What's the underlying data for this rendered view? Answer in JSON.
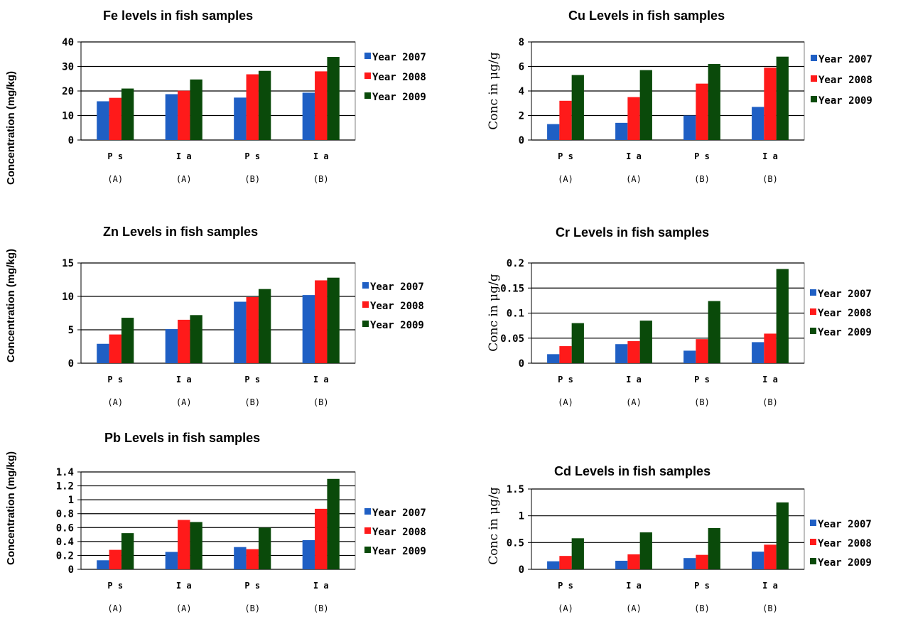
{
  "colors": {
    "y2007": "#1f5fc4",
    "y2008": "#ff1a1a",
    "y2009": "#0a4a0a"
  },
  "chart_data": [
    {
      "id": "fe",
      "type": "bar",
      "title": "Fe levels in fish samples",
      "ylabel": "Concentration  (mg/kg)",
      "categories": [
        [
          "P s",
          "(A)"
        ],
        [
          "I a",
          "(A)"
        ],
        [
          "P s",
          "(B)"
        ],
        [
          "I a",
          "(B)"
        ]
      ],
      "ylim": [
        0,
        40
      ],
      "yticks": [
        "0",
        "10",
        "20",
        "30",
        "40"
      ],
      "series": [
        {
          "name": "Year 2007",
          "values": [
            15.8,
            18.7,
            17.3,
            19.3
          ]
        },
        {
          "name": "Year 2008",
          "values": [
            17.2,
            20.1,
            26.8,
            28.0
          ]
        },
        {
          "name": "Year 2009",
          "values": [
            21.0,
            24.7,
            28.2,
            33.9
          ]
        }
      ]
    },
    {
      "id": "cu",
      "type": "bar",
      "title": "Cu Levels in fish samples",
      "ylabel": "Conc in μg/g",
      "categories": [
        [
          "P s",
          "(A)"
        ],
        [
          "I a",
          "(A)"
        ],
        [
          "P s",
          "(B)"
        ],
        [
          "I a",
          "(B)"
        ]
      ],
      "ylim": [
        0,
        8
      ],
      "yticks": [
        "0",
        "2",
        "4",
        "6",
        "8"
      ],
      "series": [
        {
          "name": "Year 2007",
          "values": [
            1.3,
            1.4,
            2.0,
            2.7
          ]
        },
        {
          "name": "Year 2008",
          "values": [
            3.2,
            3.5,
            4.6,
            5.9
          ]
        },
        {
          "name": "Year 2009",
          "values": [
            5.3,
            5.7,
            6.2,
            6.8
          ]
        }
      ]
    },
    {
      "id": "zn",
      "type": "bar",
      "title": "Zn Levels in fish samples",
      "ylabel": "Concentration  (mg/kg)",
      "categories": [
        [
          "P s",
          "(A)"
        ],
        [
          "I a",
          "(A)"
        ],
        [
          "P s",
          "(B)"
        ],
        [
          "I a",
          "(B)"
        ]
      ],
      "ylim": [
        0,
        15
      ],
      "yticks": [
        "0",
        "5",
        "10",
        "15"
      ],
      "series": [
        {
          "name": "Year 2007",
          "values": [
            2.9,
            5.1,
            9.2,
            10.2
          ]
        },
        {
          "name": "Year 2008",
          "values": [
            4.3,
            6.5,
            9.9,
            12.4
          ]
        },
        {
          "name": "Year 2009",
          "values": [
            6.8,
            7.2,
            11.1,
            12.8
          ]
        }
      ]
    },
    {
      "id": "cr",
      "type": "bar",
      "title": "Cr Levels in fish samples",
      "ylabel": "Conc in μg/g",
      "categories": [
        [
          "P s",
          "(A)"
        ],
        [
          "I a",
          "(A)"
        ],
        [
          "P s",
          "(B)"
        ],
        [
          "I a",
          "(B)"
        ]
      ],
      "ylim": [
        0,
        0.2
      ],
      "yticks": [
        "0",
        "0.05",
        "0.1",
        "0.15",
        "0.2"
      ],
      "series": [
        {
          "name": "Year 2007",
          "values": [
            0.018,
            0.038,
            0.025,
            0.042
          ]
        },
        {
          "name": "Year 2008",
          "values": [
            0.034,
            0.044,
            0.048,
            0.059
          ]
        },
        {
          "name": "Year 2009",
          "values": [
            0.08,
            0.085,
            0.124,
            0.188
          ]
        }
      ]
    },
    {
      "id": "pb",
      "type": "bar",
      "title": "Pb Levels in fish samples",
      "ylabel": "Concentration  (mg/kg)",
      "categories": [
        [
          "P s",
          "(A)"
        ],
        [
          "I a",
          "(A)"
        ],
        [
          "P s",
          "(B)"
        ],
        [
          "I a",
          "(B)"
        ]
      ],
      "ylim": [
        0,
        1.4
      ],
      "yticks": [
        "0",
        "0.2",
        "0.4",
        "0.6",
        "0.8",
        "1",
        "1.2",
        "1.4"
      ],
      "series": [
        {
          "name": "Year 2007",
          "values": [
            0.13,
            0.25,
            0.32,
            0.42
          ]
        },
        {
          "name": "Year 2008",
          "values": [
            0.28,
            0.71,
            0.29,
            0.87
          ]
        },
        {
          "name": "Year 2009",
          "values": [
            0.52,
            0.68,
            0.6,
            1.3
          ]
        }
      ]
    },
    {
      "id": "cd",
      "type": "bar",
      "title": "Cd Levels in fish samples",
      "ylabel": "Conc in μg/g",
      "categories": [
        [
          "P s",
          "(A)"
        ],
        [
          "I a",
          "(A)"
        ],
        [
          "P s",
          "(B)"
        ],
        [
          "I a",
          "(B)"
        ]
      ],
      "ylim": [
        0,
        1.5
      ],
      "yticks": [
        "0",
        "0.5",
        "1",
        "1.5"
      ],
      "series": [
        {
          "name": "Year 2007",
          "values": [
            0.15,
            0.16,
            0.21,
            0.33
          ]
        },
        {
          "name": "Year 2008",
          "values": [
            0.25,
            0.28,
            0.27,
            0.46
          ]
        },
        {
          "name": "Year 2009",
          "values": [
            0.58,
            0.69,
            0.77,
            1.25
          ]
        }
      ]
    }
  ]
}
